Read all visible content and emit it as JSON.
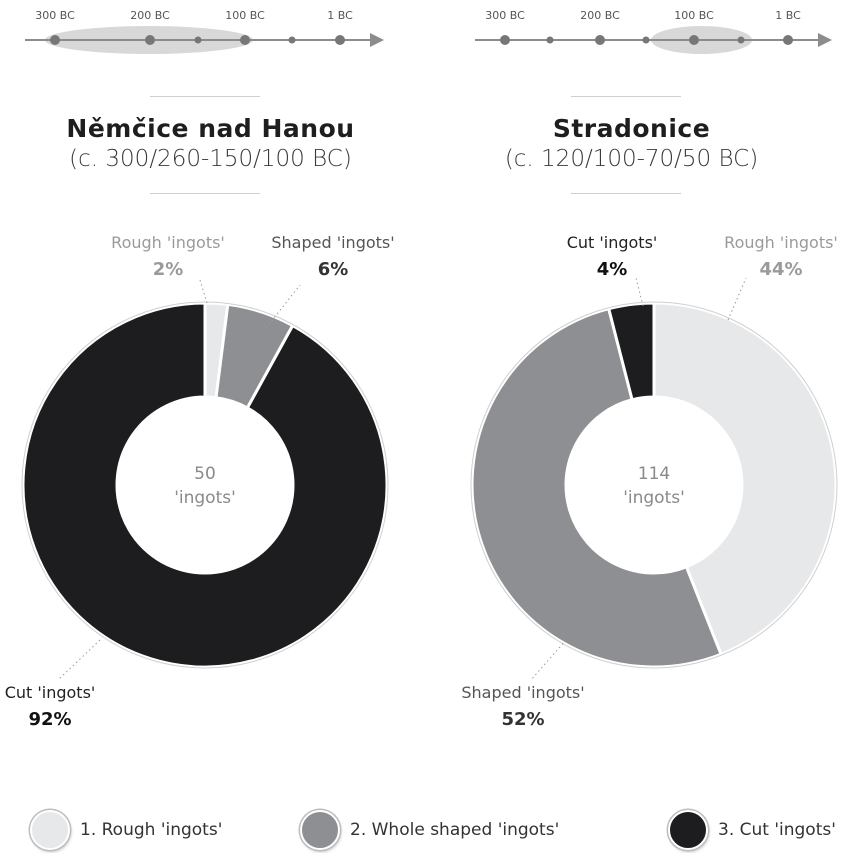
{
  "colors": {
    "rough": "#e7e8e9",
    "shaped": "#8e8f92",
    "cut": "#1d1d1f",
    "axis": "#8c8c8c",
    "highlight": "#d8d8d8"
  },
  "chart_data": [
    {
      "type": "pie",
      "title": "Němčice nad Hanou",
      "subtitle": "(c. 300/260-150/100 BC)",
      "center_value": "50",
      "center_label": "'ingots'",
      "timeline": {
        "tick_labels": [
          "300 BC",
          "200 BC",
          "100 BC",
          "1 BC"
        ],
        "highlight_range": [
          "300/260 BC",
          "150/100 BC"
        ]
      },
      "slices": [
        {
          "category": "Rough 'ingots'",
          "value": 2,
          "label": "2%",
          "color_key": "rough"
        },
        {
          "category": "Shaped 'ingots'",
          "value": 6,
          "label": "6%",
          "color_key": "shaped"
        },
        {
          "category": "Cut 'ingots'",
          "value": 92,
          "label": "92%",
          "color_key": "cut"
        }
      ]
    },
    {
      "type": "pie",
      "title": "Stradonice",
      "subtitle": "(c. 120/100-70/50 BC)",
      "center_value": "114",
      "center_label": "'ingots'",
      "timeline": {
        "tick_labels": [
          "300 BC",
          "200 BC",
          "100 BC",
          "1 BC"
        ],
        "highlight_range": [
          "120/100 BC",
          "70/50 BC"
        ]
      },
      "slices": [
        {
          "category": "Rough 'ingots'",
          "value": 44,
          "label": "44%",
          "color_key": "rough"
        },
        {
          "category": "Shaped 'ingots'",
          "value": 52,
          "label": "52%",
          "color_key": "shaped"
        },
        {
          "category": "Cut 'ingots'",
          "value": 4,
          "label": "4%",
          "color_key": "cut"
        }
      ]
    }
  ],
  "legend": [
    {
      "label": "1. Rough 'ingots'",
      "color_key": "rough"
    },
    {
      "label": "2. Whole shaped 'ingots'",
      "color_key": "shaped"
    },
    {
      "label": "3. Cut 'ingots'",
      "color_key": "cut"
    }
  ]
}
